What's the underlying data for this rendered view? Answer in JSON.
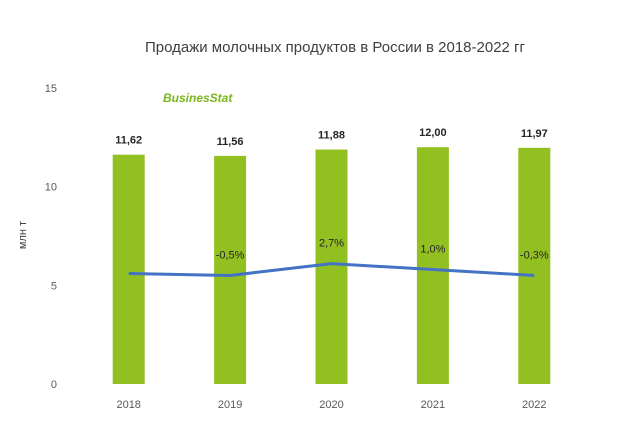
{
  "chart_data": {
    "type": "bar",
    "title": "Продажи молочных продуктов в России в 2018-2022 гг",
    "ylabel": "млн т",
    "xlabel": "",
    "ylim": [
      0,
      15
    ],
    "yticks": [
      0,
      5,
      10,
      15
    ],
    "grid": false,
    "categories": [
      "2018",
      "2019",
      "2020",
      "2021",
      "2022"
    ],
    "series": [
      {
        "values": [
          11.62,
          11.56,
          11.88,
          12.0,
          11.97
        ],
        "labels": [
          "11,62",
          "11,56",
          "11,88",
          "12,00",
          "11,97"
        ],
        "color": "#92c020"
      },
      {
        "kind": "line",
        "values": [
          5.6,
          5.5,
          6.1,
          5.8,
          5.5
        ],
        "labels": [
          "",
          "-0,5%",
          "2,7%",
          "1,0%",
          "-0,3%"
        ],
        "color": "#4472c4"
      }
    ]
  },
  "branding": {
    "logo_text": "BusinesStat",
    "logo_color": "#7ab51d"
  }
}
